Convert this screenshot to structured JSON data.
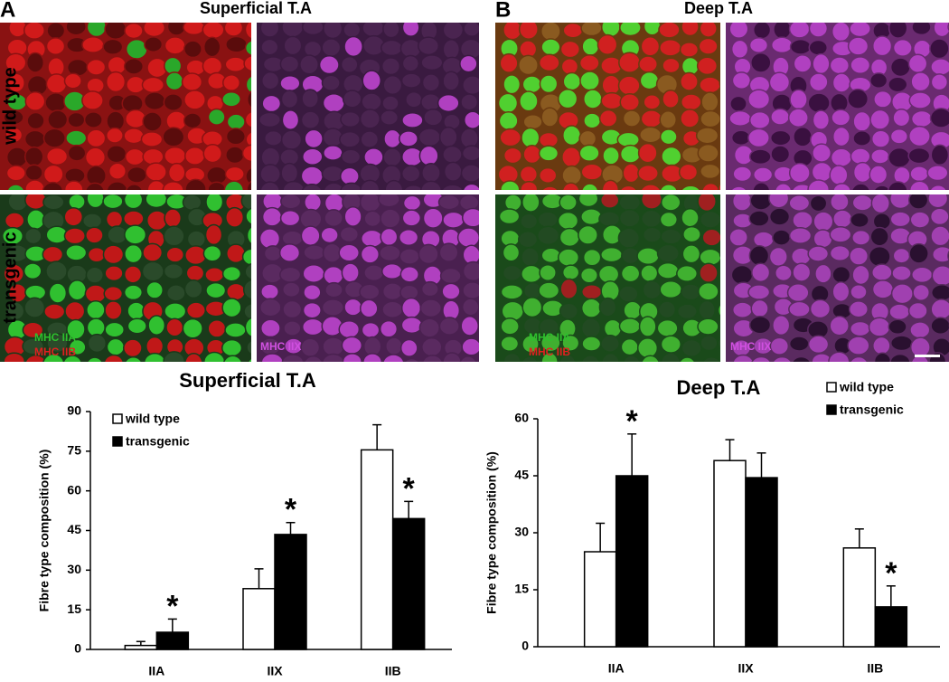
{
  "panels": [
    {
      "letter": "A",
      "title": "Superficial T.A",
      "stains": [
        "MHC IIA",
        "MHC IIB"
      ],
      "stain2": "MHC IIX"
    },
    {
      "letter": "B",
      "title": "Deep T.A",
      "stains": [
        "MHC IIA",
        "MHC IIB"
      ],
      "stain2": "MHC IIX"
    }
  ],
  "rows": [
    "wild type",
    "transgenic"
  ],
  "chart_data": [
    {
      "type": "bar",
      "title": "Superficial T.A",
      "y_label": "Fibre type composition (%)",
      "categories": [
        "IIA",
        "IIX",
        "IIB"
      ],
      "ylim": [
        0,
        90
      ],
      "yticks": [
        0,
        15,
        30,
        45,
        60,
        75,
        90
      ],
      "legend": "upper left",
      "series": [
        {
          "name": "wild type",
          "color": "#ffffff",
          "values": [
            1.5,
            23,
            75.5
          ],
          "errors": [
            1.5,
            7.5,
            9.5
          ],
          "markers": [
            null,
            null,
            null
          ]
        },
        {
          "name": "transgenic",
          "color": "#000000",
          "values": [
            6.5,
            43.5,
            49.5
          ],
          "errors": [
            5,
            4.5,
            6.5
          ],
          "markers": [
            "*",
            "*",
            "*"
          ]
        }
      ]
    },
    {
      "type": "bar",
      "title": "Deep T.A",
      "y_label": "Fibre type composition (%)",
      "categories": [
        "IIA",
        "IIX",
        "IIB"
      ],
      "ylim": [
        0,
        60
      ],
      "yticks": [
        0,
        15,
        30,
        45,
        60
      ],
      "legend": "upper right",
      "series": [
        {
          "name": "wild type",
          "color": "#ffffff",
          "values": [
            25,
            49,
            26
          ],
          "errors": [
            7.5,
            5.5,
            5
          ],
          "markers": [
            null,
            null,
            null
          ]
        },
        {
          "name": "transgenic",
          "color": "#000000",
          "values": [
            45,
            44.5,
            10.5
          ],
          "errors": [
            11,
            6.5,
            5.5
          ],
          "markers": [
            "*",
            null,
            "*"
          ]
        }
      ]
    }
  ]
}
